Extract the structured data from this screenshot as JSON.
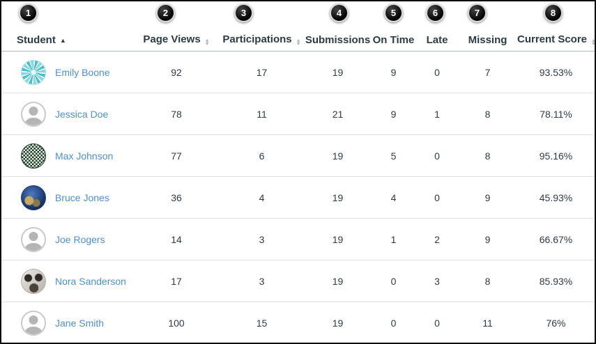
{
  "badges": [
    "1",
    "2",
    "3",
    "4",
    "5",
    "6",
    "7",
    "8"
  ],
  "columns": [
    {
      "label": "Student",
      "sort": "ascending"
    },
    {
      "label": "Page Views",
      "sort": "sortable"
    },
    {
      "label": "Participations",
      "sort": "sortable"
    },
    {
      "label": "Submissions",
      "sort": "none"
    },
    {
      "label": "On Time",
      "sort": "none"
    },
    {
      "label": "Late",
      "sort": "none"
    },
    {
      "label": "Missing",
      "sort": "none"
    },
    {
      "label": "Current Score",
      "sort": "sortable"
    }
  ],
  "rows": [
    {
      "student": "Emily Boone",
      "avatar": "kaleidoscope-teal",
      "values": [
        "92",
        "17",
        "19",
        "9",
        "0",
        "7",
        "93.53%"
      ]
    },
    {
      "student": "Jessica Doe",
      "avatar": "default",
      "values": [
        "78",
        "11",
        "21",
        "9",
        "1",
        "8",
        "78.11%"
      ]
    },
    {
      "student": "Max Johnson",
      "avatar": "pattern-green",
      "values": [
        "77",
        "6",
        "19",
        "5",
        "0",
        "8",
        "95.16%"
      ]
    },
    {
      "student": "Bruce Jones",
      "avatar": "earth",
      "values": [
        "36",
        "4",
        "19",
        "4",
        "0",
        "9",
        "45.93%"
      ]
    },
    {
      "student": "Joe Rogers",
      "avatar": "default",
      "values": [
        "14",
        "3",
        "19",
        "1",
        "2",
        "9",
        "66.67%"
      ]
    },
    {
      "student": "Nora Sanderson",
      "avatar": "panda",
      "values": [
        "17",
        "3",
        "19",
        "0",
        "3",
        "8",
        "85.93%"
      ]
    },
    {
      "student": "Jane Smith",
      "avatar": "default",
      "values": [
        "100",
        "15",
        "19",
        "0",
        "0",
        "11",
        "76%"
      ]
    }
  ],
  "colors": {
    "link_blue": "#4a90d9",
    "text_dark": "#2d3b45",
    "badge_black": "#000000",
    "header_border": "#b2b9bf",
    "row_divider": "#dfe3e7"
  }
}
